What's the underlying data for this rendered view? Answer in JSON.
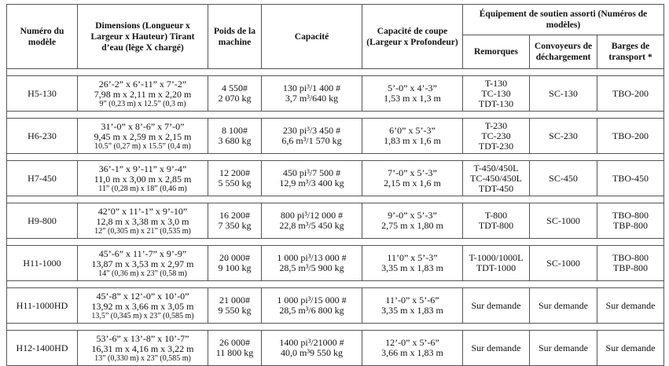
{
  "headers": {
    "model": "Numéro du modèle",
    "dimensions": "Dimensions (Longueur x Largeur x Hauteur) Tirant d’eau (lège X chargé)",
    "weight": "Poids de la machine",
    "capacity": "Capacité",
    "cut": "Capacité de coupe (Largeur x Profondeur)",
    "equipment": "Équipement de soutien assorti (Numéros de modèles)",
    "trailers": "Remorques",
    "conveyors": "Convoyeurs de déchargement",
    "barges": "Barges de transport *"
  },
  "rows": [
    {
      "model": "H5-130",
      "dim1": "26’-2” x 6’-11” x 7’-2”",
      "dim2": "7,98 m x 2,11 m x 2,20 m",
      "draft": "9” (0,23 m) x 12.5” (0,3 m)",
      "w1": "4 550#",
      "w2": "2 070 kg",
      "cap1": "130 pi³/1 400 #",
      "cap2": "3,7 m³/640 kg",
      "cut1": "5’-0” x 4’-3”",
      "cut2": "1,53 m x 1,3 m",
      "trailers": [
        "T-130",
        "TC-130",
        "TDT-130"
      ],
      "conveyor": "SC-130",
      "barges": [
        "TBO-200"
      ]
    },
    {
      "model": "H6-230",
      "dim1": "31’-0” x 8’-6” x 7’-0”",
      "dim2": "9,45 m x 2,59 m x 2,15 m",
      "draft": "10.5” (0,27 m) x 15.5” (0,4 m)",
      "w1": "8 100#",
      "w2": "3 680 kg",
      "cap1": "230 pi³/3 450 #",
      "cap2": "6,6 m³/1 570 kg",
      "cut1": "6’0” x 5’-3”",
      "cut2": "1,83 m x 1,6 m",
      "trailers": [
        "T-230",
        "TC-230",
        "TDT-230"
      ],
      "conveyor": "SC-230",
      "barges": [
        "TBO-200"
      ]
    },
    {
      "model": "H7-450",
      "dim1": "36’-1” x 9’-11” x 9’-4”",
      "dim2": "11,0 m x 3,00 m x 2,85 m",
      "draft": "11” (0,28 m) x 18” (0,46 m)",
      "w1": "12 200#",
      "w2": "5 550 kg",
      "cap1": "450 pi³/7 500 #",
      "cap2": "12,9 m³/3 400 kg",
      "cut1": "7’-0” x 5’-3”",
      "cut2": "2,15 m x 1,6 m",
      "trailers": [
        "T-450/450L",
        "TC-450/450L",
        "TDT-450"
      ],
      "conveyor": "SC-450",
      "barges": [
        "TBO-450"
      ]
    },
    {
      "model": "H9-800",
      "dim1": "42’0” x 11’-1” x 9’-10”",
      "dim2": "12,8 m x 3,38 m x 3,0 m",
      "draft": "12” (0,305 m) x 21” (0,535 m)",
      "w1": "16 200#",
      "w2": "7 350 kg",
      "cap1": "800 pi³/12 000 #",
      "cap2": "22,8 m³/5 450 kg",
      "cut1": "9’-0” x 5’-3”",
      "cut2": "2,75 m x 1,80 m",
      "trailers": [
        "T-800",
        "TDT-800"
      ],
      "conveyor": "SC-1000",
      "barges": [
        "TBO-800",
        "TBP-800"
      ]
    },
    {
      "model": "H11-1000",
      "dim1": "45’-6” x 11’-7” x 9’-9”",
      "dim2": "13,87 m x 3,53 m x 2,97 m",
      "draft": "14” (0,36 m) x 23” (0,58 m)",
      "w1": "20 000#",
      "w2": "9 100 kg",
      "cap1": "1 000 pi³/13 000 #",
      "cap2": "28,5 m³/5 900 kg",
      "cut1": "11’0” x 5’-3”",
      "cut2": "3,35 m x 1,83 m",
      "trailers": [
        "T-1000/1000L",
        "TDT-1000"
      ],
      "conveyor": "SC-1000",
      "barges": [
        "TBO-800",
        "TBP-800"
      ]
    },
    {
      "model": "H11-1000HD",
      "dim1": "45’-8” x 12’-0” x 10’-0”",
      "dim2": "13,92 m x 3,66 m x 3,05 m",
      "draft": "13,5” (0,345 m) x 23” (0,585 m)",
      "w1": "21 000#",
      "w2": "9 550 kg",
      "cap1": "1 000 pi³/15 000 #",
      "cap2": "28,5 m³/6 800 kg",
      "cut1": "11’-0” x 5’-6”",
      "cut2": "3,35 m x 1,83 m",
      "trailers": [
        "Sur demande"
      ],
      "conveyor": "Sur demande",
      "barges": [
        "Sur demande"
      ]
    },
    {
      "model": "H12-1400HD",
      "dim1": "53’-6” x 13’-8” x 10’-7”",
      "dim2": "16,31 m x 4,16 m x 3,22 m",
      "draft": "13” (0,330 m) x 23” (0,585 m)",
      "w1": "26 000#",
      "w2": "11 800 kg",
      "cap1": "1400 pi³/21000 #",
      "cap2": "40,0 m³9 550 kg",
      "cut1": "12’-0” x 5’-6”",
      "cut2": "3,66 m x 1,83 m",
      "trailers": [
        "Sur demande"
      ],
      "conveyor": "Sur demande",
      "barges": [
        "Sur demande"
      ]
    }
  ]
}
